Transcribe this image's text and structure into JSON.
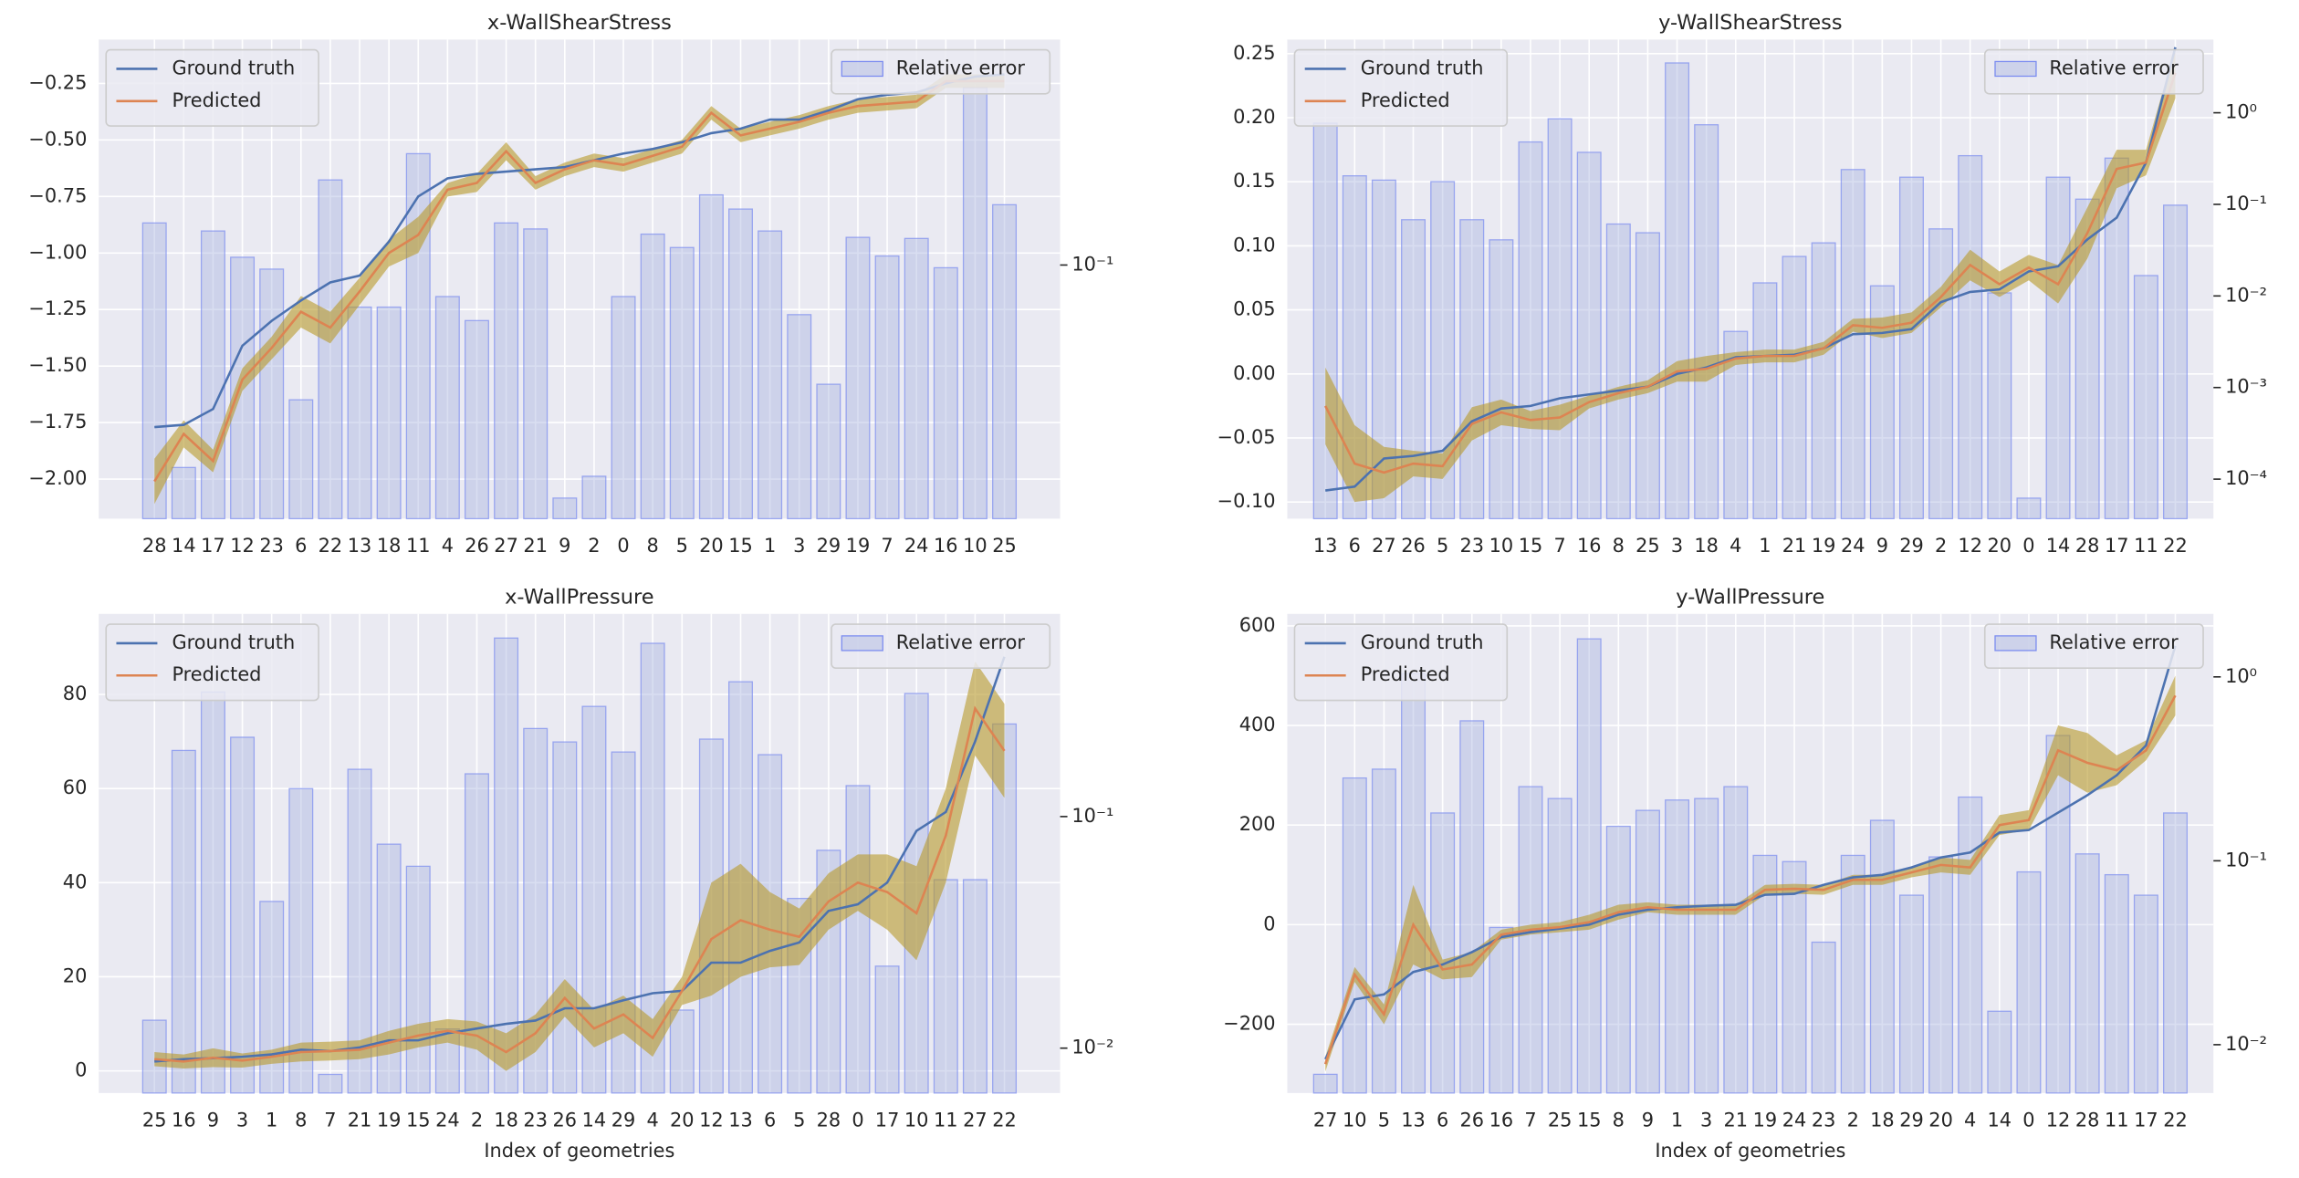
{
  "chart_data": [
    {
      "type": "line_band_bar",
      "title": "x-WallShearStress",
      "categories": [
        "28",
        "14",
        "17",
        "12",
        "23",
        "6",
        "22",
        "13",
        "18",
        "11",
        "4",
        "26",
        "27",
        "21",
        "9",
        "2",
        "0",
        "8",
        "5",
        "20",
        "15",
        "1",
        "3",
        "29",
        "19",
        "7",
        "24",
        "16",
        "10",
        "25"
      ],
      "series": [
        {
          "name": "Ground truth",
          "color": "#4c72b0",
          "values": [
            -1.77,
            -1.76,
            -1.69,
            -1.41,
            -1.3,
            -1.21,
            -1.13,
            -1.1,
            -0.95,
            -0.75,
            -0.67,
            -0.65,
            -0.64,
            -0.63,
            -0.62,
            -0.59,
            -0.56,
            -0.54,
            -0.51,
            -0.47,
            -0.45,
            -0.41,
            -0.41,
            -0.37,
            -0.32,
            -0.3,
            -0.29,
            -0.25,
            -0.22,
            -0.21
          ]
        },
        {
          "name": "Predicted",
          "color": "#dd8452",
          "band_color": "#b89a2a",
          "values": [
            -2.01,
            -1.8,
            -1.92,
            -1.56,
            -1.42,
            -1.26,
            -1.33,
            -1.17,
            -1.0,
            -0.92,
            -0.72,
            -0.69,
            -0.55,
            -0.69,
            -0.63,
            -0.59,
            -0.61,
            -0.57,
            -0.53,
            -0.38,
            -0.48,
            -0.45,
            -0.42,
            -0.38,
            -0.35,
            -0.34,
            -0.33,
            -0.24,
            -0.24,
            -0.24
          ],
          "band": [
            0.1,
            0.06,
            0.05,
            0.05,
            0.05,
            0.07,
            0.07,
            0.06,
            0.06,
            0.08,
            0.03,
            0.04,
            0.04,
            0.03,
            0.03,
            0.03,
            0.03,
            0.03,
            0.03,
            0.03,
            0.03,
            0.03,
            0.03,
            0.03,
            0.03,
            0.03,
            0.03,
            0.03,
            0.03,
            0.03
          ]
        },
        {
          "name": "Relative error",
          "color": "#aab6e0",
          "edge_color": "#7b8cf0",
          "axis": "y2",
          "values": [
            0.137,
            0.022,
            0.129,
            0.106,
            0.097,
            0.0365,
            0.189,
            0.073,
            0.073,
            0.23,
            0.079,
            0.066,
            0.137,
            0.131,
            0.0175,
            0.0206,
            0.079,
            0.126,
            0.114,
            0.169,
            0.152,
            0.129,
            0.069,
            0.041,
            0.123,
            0.107,
            0.122,
            0.098,
            0.377,
            0.157
          ]
        }
      ],
      "ylim": [
        -2.175,
        -0.056
      ],
      "yticks": [
        {
          "value": -0.25,
          "label": "−0.25"
        },
        {
          "value": -0.5,
          "label": "−0.50"
        },
        {
          "value": -0.75,
          "label": "−0.75"
        },
        {
          "value": -1.0,
          "label": "−1.00"
        },
        {
          "value": -1.25,
          "label": "−1.25"
        },
        {
          "value": -1.5,
          "label": "−1.50"
        },
        {
          "value": -1.75,
          "label": "−1.75"
        },
        {
          "value": -2.0,
          "label": "−2.00"
        }
      ],
      "y2scale": "log",
      "y2lim": [
        0.015,
        0.54
      ],
      "y2ticks": [
        {
          "value": 0.1,
          "label": "10⁻¹"
        }
      ],
      "grid": true
    },
    {
      "type": "line_band_bar",
      "title": "y-WallShearStress",
      "categories": [
        "13",
        "6",
        "27",
        "26",
        "5",
        "23",
        "10",
        "15",
        "7",
        "16",
        "8",
        "25",
        "3",
        "18",
        "4",
        "1",
        "21",
        "19",
        "24",
        "9",
        "29",
        "2",
        "12",
        "20",
        "0",
        "14",
        "28",
        "17",
        "11",
        "22"
      ],
      "series": [
        {
          "name": "Ground truth",
          "color": "#4c72b0",
          "values": [
            -0.091,
            -0.088,
            -0.066,
            -0.064,
            -0.06,
            -0.037,
            -0.027,
            -0.025,
            -0.019,
            -0.016,
            -0.013,
            -0.01,
            0.0,
            0.005,
            0.013,
            0.014,
            0.015,
            0.02,
            0.031,
            0.032,
            0.035,
            0.056,
            0.064,
            0.066,
            0.08,
            0.084,
            0.105,
            0.122,
            0.165,
            0.255
          ]
        },
        {
          "name": "Predicted",
          "color": "#dd8452",
          "band_color": "#b89a2a",
          "values": [
            -0.025,
            -0.07,
            -0.077,
            -0.07,
            -0.072,
            -0.039,
            -0.03,
            -0.036,
            -0.034,
            -0.022,
            -0.015,
            -0.01,
            0.002,
            0.004,
            0.012,
            0.014,
            0.014,
            0.02,
            0.038,
            0.036,
            0.04,
            0.06,
            0.085,
            0.07,
            0.083,
            0.07,
            0.11,
            0.16,
            0.165,
            0.235
          ],
          "band": [
            0.03,
            0.03,
            0.02,
            0.01,
            0.01,
            0.013,
            0.01,
            0.007,
            0.01,
            0.005,
            0.005,
            0.005,
            0.008,
            0.01,
            0.005,
            0.005,
            0.005,
            0.005,
            0.005,
            0.008,
            0.008,
            0.008,
            0.012,
            0.01,
            0.01,
            0.015,
            0.02,
            0.015,
            0.01,
            0.02
          ]
        },
        {
          "name": "Relative error",
          "color": "#aab6e0",
          "edge_color": "#7b8cf0",
          "axis": "y2",
          "values": [
            0.77,
            0.205,
            0.184,
            0.068,
            0.177,
            0.068,
            0.041,
            0.48,
            0.86,
            0.37,
            0.061,
            0.049,
            3.5,
            0.74,
            0.0041,
            0.0139,
            0.027,
            0.038,
            0.24,
            0.0129,
            0.198,
            0.054,
            0.34,
            0.0108,
            6.2e-05,
            0.198,
            0.114,
            0.32,
            0.0167,
            0.098
          ]
        }
      ],
      "ylim": [
        -0.113,
        0.261
      ],
      "yticks": [
        {
          "value": 0.25,
          "label": "0.25"
        },
        {
          "value": 0.2,
          "label": "0.20"
        },
        {
          "value": 0.15,
          "label": "0.15"
        },
        {
          "value": 0.1,
          "label": "0.10"
        },
        {
          "value": 0.05,
          "label": "0.05"
        },
        {
          "value": 0,
          "label": "0.00"
        },
        {
          "value": -0.05,
          "label": "−0.05"
        },
        {
          "value": -0.1,
          "label": "−0.10"
        }
      ],
      "y2scale": "log",
      "y2lim": [
        3.7e-05,
        6.3
      ],
      "y2ticks": [
        {
          "value": 1,
          "label": "10⁰"
        },
        {
          "value": 0.1,
          "label": "10⁻¹"
        },
        {
          "value": 0.01,
          "label": "10⁻²"
        },
        {
          "value": 0.001,
          "label": "10⁻³"
        },
        {
          "value": 0.0001,
          "label": "10⁻⁴"
        }
      ],
      "grid": true
    },
    {
      "type": "line_band_bar",
      "title": "x-WallPressure",
      "xlabel": "Index of geometries",
      "categories": [
        "25",
        "16",
        "9",
        "3",
        "1",
        "8",
        "7",
        "21",
        "19",
        "15",
        "24",
        "2",
        "18",
        "23",
        "26",
        "14",
        "29",
        "4",
        "20",
        "12",
        "13",
        "6",
        "5",
        "28",
        "0",
        "17",
        "10",
        "11",
        "27",
        "22"
      ],
      "series": [
        {
          "name": "Ground truth",
          "color": "#4c72b0",
          "values": [
            2.0,
            2.5,
            2.7,
            3.0,
            3.5,
            4.5,
            4.2,
            5.0,
            6.5,
            6.5,
            8.0,
            9.0,
            10.0,
            10.7,
            13.3,
            13.3,
            15.0,
            16.5,
            17.0,
            23.0,
            23.0,
            25.5,
            27.3,
            34.0,
            35.4,
            40.0,
            51.0,
            55.0,
            70.0,
            88.0
          ]
        },
        {
          "name": "Predicted",
          "color": "#dd8452",
          "band_color": "#b89a2a",
          "values": [
            2.5,
            2.0,
            2.8,
            2.2,
            3.0,
            4.0,
            4.2,
            4.5,
            6.0,
            7.5,
            8.5,
            7.5,
            4.0,
            8.0,
            15.5,
            9.0,
            12.0,
            7.0,
            17.0,
            28.0,
            32.0,
            30.0,
            28.5,
            36.0,
            40.0,
            38.0,
            33.5,
            50.0,
            77.0,
            68.0
          ],
          "band": [
            1.5,
            1.5,
            2,
            1.5,
            1.5,
            2,
            2,
            2,
            2.5,
            2.5,
            2.5,
            3,
            4,
            4,
            4,
            4,
            4,
            4,
            3,
            12,
            12,
            8,
            6,
            6,
            6,
            8,
            10,
            10,
            10,
            10
          ]
        },
        {
          "name": "Relative error",
          "color": "#aab6e0",
          "edge_color": "#7b8cf0",
          "axis": "y2",
          "values": [
            0.0132,
            0.193,
            0.345,
            0.22,
            0.043,
            0.132,
            0.0077,
            0.16,
            0.076,
            0.061,
            0.0121,
            0.153,
            0.59,
            0.24,
            0.21,
            0.299,
            0.19,
            0.56,
            0.0146,
            0.216,
            0.382,
            0.185,
            0.0443,
            0.0715,
            0.136,
            0.0226,
            0.34,
            0.0534,
            0.0534,
            0.251
          ]
        }
      ],
      "ylim": [
        -4.7,
        97.1
      ],
      "yticks": [
        0,
        20,
        40,
        60,
        80
      ],
      "y2scale": "log",
      "y2lim": [
        0.0064,
        0.75
      ],
      "y2ticks": [
        {
          "value": 0.1,
          "label": "10⁻¹"
        },
        {
          "value": 0.01,
          "label": "10⁻²"
        }
      ],
      "grid": true
    },
    {
      "type": "line_band_bar",
      "title": "y-WallPressure",
      "xlabel": "Index of geometries",
      "categories": [
        "27",
        "10",
        "5",
        "13",
        "6",
        "26",
        "16",
        "7",
        "25",
        "15",
        "8",
        "9",
        "1",
        "3",
        "21",
        "19",
        "24",
        "23",
        "2",
        "18",
        "29",
        "20",
        "4",
        "14",
        "0",
        "12",
        "28",
        "11",
        "17",
        "22"
      ],
      "series": [
        {
          "name": "Ground truth",
          "color": "#4c72b0",
          "values": [
            -270,
            -150,
            -140,
            -95,
            -80,
            -55,
            -25,
            -15,
            -8,
            0,
            20,
            30,
            35,
            38,
            40,
            60,
            62,
            80,
            95,
            100,
            115,
            135,
            145,
            185,
            190,
            225,
            260,
            300,
            360,
            560
          ]
        },
        {
          "name": "Predicted",
          "color": "#dd8452",
          "band_color": "#b89a2a",
          "values": [
            -280,
            -100,
            -180,
            0,
            -90,
            -80,
            -20,
            -10,
            -5,
            5,
            25,
            35,
            30,
            30,
            30,
            70,
            72,
            70,
            90,
            90,
            105,
            120,
            115,
            200,
            210,
            350,
            325,
            310,
            350,
            460
          ],
          "band": [
            15,
            15,
            20,
            80,
            20,
            25,
            10,
            10,
            10,
            15,
            15,
            10,
            10,
            10,
            10,
            10,
            10,
            10,
            10,
            10,
            10,
            15,
            15,
            20,
            20,
            50,
            60,
            30,
            20,
            40
          ]
        },
        {
          "name": "Relative error",
          "color": "#aab6e0",
          "edge_color": "#7b8cf0",
          "axis": "y2",
          "values": [
            0.0069,
            0.282,
            0.315,
            1.04,
            0.182,
            0.577,
            0.0434,
            0.253,
            0.218,
            1.61,
            0.154,
            0.188,
            0.214,
            0.218,
            0.253,
            0.107,
            0.099,
            0.0361,
            0.107,
            0.166,
            0.065,
            0.105,
            0.222,
            0.0152,
            0.087,
            0.48,
            0.109,
            0.084,
            0.065,
            0.182
          ]
        }
      ],
      "ylim": [
        -338,
        624
      ],
      "yticks": [
        {
          "value": -200,
          "label": "−200"
        },
        0,
        200,
        400,
        600
      ],
      "y2scale": "log",
      "y2lim": [
        0.00546,
        2.2
      ],
      "y2ticks": [
        {
          "value": 1,
          "label": "10⁰"
        },
        {
          "value": 0.1,
          "label": "10⁻¹"
        },
        {
          "value": 0.01,
          "label": "10⁻²"
        }
      ],
      "grid": true
    }
  ]
}
